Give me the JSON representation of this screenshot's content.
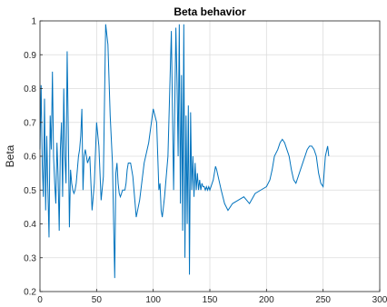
{
  "chart_data": {
    "type": "line",
    "title": "Beta behavior",
    "xlabel": "",
    "ylabel": "Beta",
    "xlim": [
      0,
      300
    ],
    "ylim": [
      0.2,
      1.0
    ],
    "xticks": [
      "0",
      "50",
      "100",
      "150",
      "200",
      "250",
      "300"
    ],
    "yticks": [
      "0.2",
      "0.3",
      "0.4",
      "0.5",
      "0.6",
      "0.7",
      "0.8",
      "0.9",
      "1"
    ],
    "grid": true,
    "series_color": "#0072BD",
    "series": [
      {
        "x": [
          0,
          1,
          2,
          3,
          4,
          5,
          6,
          7,
          8,
          9,
          10,
          11,
          12,
          13,
          14,
          15,
          16,
          17,
          18,
          19,
          20,
          21,
          22,
          23,
          24,
          25,
          26,
          27,
          28,
          29,
          30,
          31,
          32,
          33,
          34,
          35,
          36,
          37,
          38,
          39,
          40,
          42,
          44,
          46,
          48,
          50,
          52,
          54,
          56,
          58,
          60,
          62,
          64,
          66,
          67,
          68,
          69,
          70,
          71,
          72,
          73,
          74,
          75,
          76,
          77,
          78,
          80,
          82,
          85,
          88,
          92,
          96,
          100,
          103,
          105,
          106,
          107,
          108,
          110,
          113,
          116,
          118,
          120,
          121,
          122,
          123,
          124,
          125,
          126,
          127,
          128,
          129,
          130,
          131,
          132,
          133,
          134,
          135,
          136,
          137,
          138,
          139,
          140,
          141,
          142,
          143,
          144,
          145,
          146,
          147,
          148,
          149,
          150,
          151,
          152,
          153,
          154,
          155,
          156,
          158,
          160,
          163,
          166,
          170,
          175,
          180,
          185,
          190,
          195,
          200,
          203,
          205,
          207,
          210,
          212,
          214,
          216,
          218,
          220,
          222,
          224,
          226,
          228,
          230,
          232,
          234,
          236,
          238,
          240,
          242,
          244,
          246,
          248,
          250,
          252,
          254,
          255
        ],
        "values": [
          0.62,
          0.81,
          0.58,
          0.48,
          0.77,
          0.44,
          0.66,
          0.5,
          0.36,
          0.72,
          0.62,
          0.85,
          0.6,
          0.52,
          0.46,
          0.64,
          0.54,
          0.38,
          0.62,
          0.7,
          0.48,
          0.8,
          0.6,
          0.52,
          0.91,
          0.68,
          0.39,
          0.56,
          0.52,
          0.5,
          0.49,
          0.5,
          0.52,
          0.56,
          0.6,
          0.62,
          0.66,
          0.74,
          0.5,
          0.6,
          0.62,
          0.58,
          0.6,
          0.44,
          0.52,
          0.7,
          0.63,
          0.47,
          0.54,
          0.99,
          0.93,
          0.72,
          0.58,
          0.24,
          0.55,
          0.58,
          0.52,
          0.49,
          0.48,
          0.49,
          0.5,
          0.5,
          0.5,
          0.52,
          0.56,
          0.58,
          0.58,
          0.54,
          0.42,
          0.47,
          0.58,
          0.64,
          0.74,
          0.7,
          0.5,
          0.52,
          0.44,
          0.42,
          0.48,
          0.6,
          0.97,
          0.5,
          0.98,
          0.82,
          0.6,
          0.99,
          0.46,
          0.84,
          0.38,
          0.99,
          0.3,
          0.72,
          0.4,
          0.75,
          0.25,
          0.73,
          0.5,
          0.6,
          0.48,
          0.58,
          0.5,
          0.55,
          0.5,
          0.53,
          0.5,
          0.52,
          0.51,
          0.51,
          0.5,
          0.51,
          0.5,
          0.51,
          0.5,
          0.51,
          0.52,
          0.53,
          0.55,
          0.57,
          0.56,
          0.53,
          0.5,
          0.46,
          0.44,
          0.46,
          0.47,
          0.48,
          0.46,
          0.49,
          0.5,
          0.51,
          0.53,
          0.56,
          0.6,
          0.62,
          0.64,
          0.65,
          0.64,
          0.62,
          0.6,
          0.56,
          0.53,
          0.52,
          0.54,
          0.56,
          0.58,
          0.6,
          0.62,
          0.63,
          0.63,
          0.62,
          0.6,
          0.55,
          0.52,
          0.51,
          0.6,
          0.63,
          0.6
        ]
      }
    ]
  }
}
